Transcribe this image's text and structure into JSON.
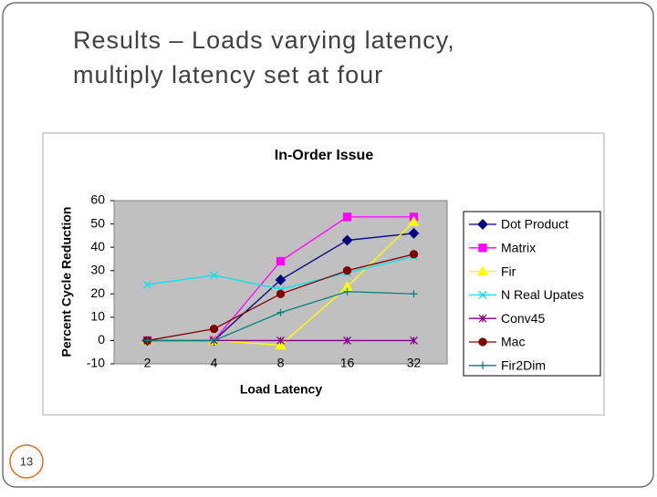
{
  "slide": {
    "title_lines": [
      "Results – Loads varying latency,",
      "multiply latency set at four"
    ],
    "number": "13"
  },
  "chart_data": {
    "type": "line",
    "title": "In-Order Issue",
    "x_label": "Load Latency",
    "y_label": "Percent Cycle Reduction",
    "categories": [
      "2",
      "4",
      "8",
      "16",
      "32"
    ],
    "ylim": [
      -10,
      60
    ],
    "yticks": [
      -10,
      0,
      10,
      20,
      30,
      40,
      50,
      60
    ],
    "grid": false,
    "legend": "right",
    "series": [
      {
        "name": "Dot Product",
        "color": "#000080",
        "marker": "diamond",
        "values": [
          0,
          0,
          26,
          43,
          46
        ]
      },
      {
        "name": "Matrix",
        "color": "#ff00ff",
        "marker": "square",
        "values": [
          0,
          0,
          34,
          53,
          53
        ]
      },
      {
        "name": "Fir",
        "color": "#ffff00",
        "marker": "triangle",
        "values": [
          0,
          0,
          -2,
          23,
          51
        ]
      },
      {
        "name": "N Real Upates",
        "color": "#00e5ee",
        "marker": "x",
        "values": [
          24,
          28,
          22,
          29,
          36
        ]
      },
      {
        "name": "Conv45",
        "color": "#800080",
        "marker": "star",
        "values": [
          0,
          0,
          0,
          0,
          0
        ]
      },
      {
        "name": "Mac",
        "color": "#800000",
        "marker": "circle",
        "values": [
          0,
          5,
          20,
          30,
          37
        ]
      },
      {
        "name": "Fir2Dim",
        "color": "#008080",
        "marker": "plus",
        "values": [
          0,
          0,
          12,
          21,
          20
        ]
      }
    ]
  }
}
